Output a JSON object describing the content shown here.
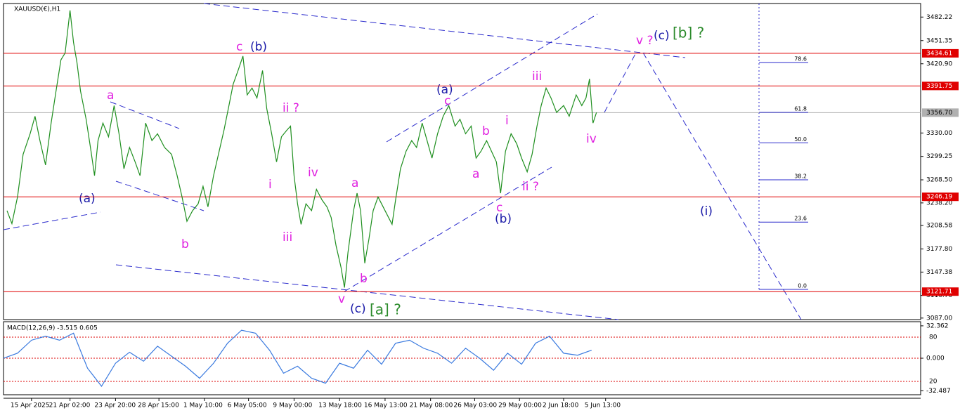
{
  "chart_data": [
    {
      "type": "line",
      "title": "XAUUSD(€),H1",
      "color": "#1f8f1f",
      "x": [
        1.25,
        3,
        5,
        7,
        9.5,
        11.25,
        13,
        15,
        17,
        18.75,
        20.5,
        22,
        23.75,
        25,
        26.25,
        27.5,
        29.5,
        31.25,
        32.5,
        33.75,
        35.5,
        37.5,
        39.5,
        41.25,
        43,
        45,
        47,
        48.75,
        50.75,
        53,
        55,
        57.5,
        60,
        62,
        63.75,
        65.5,
        67.5,
        69.5,
        71.25,
        73,
        75,
        77,
        78.75,
        80.5,
        82,
        83.75,
        85.5,
        87,
        88.75,
        90.5,
        92.5,
        94,
        95.75,
        97.5,
        99.25,
        101.25,
        102.5,
        103.75,
        105,
        106.25,
        108,
        110,
        111.75,
        113.75,
        115.5,
        117,
        118.75,
        120.5,
        121.75,
        123,
        125,
        126.25,
        127.5,
        129,
        130.5,
        132,
        133.75,
        136.25,
        138.75,
        140,
        141.75,
        143.75,
        145.75,
        147.5,
        149.5,
        151.25,
        153,
        155,
        157,
        159,
        161.25,
        163,
        165,
        167,
        168.75,
        170.5,
        172.5,
        174.25,
        176,
        177.5,
        179.25,
        181.25,
        183.25,
        185,
        187,
        188.75,
        190.5,
        192,
        193.75,
        195.5,
        197.5,
        200,
        202,
        204.5,
        206.5,
        208,
        209.25,
        210.5,
        211.75
      ],
      "values": [
        3228,
        3211,
        3246,
        3302,
        3329,
        3352,
        3320,
        3288,
        3343,
        3385,
        3426,
        3435,
        3491,
        3449,
        3422,
        3385,
        3348,
        3306,
        3274,
        3320,
        3343,
        3325,
        3366,
        3329,
        3283,
        3311,
        3292,
        3274,
        3343,
        3320,
        3329,
        3311,
        3302,
        3274,
        3246,
        3214,
        3228,
        3237,
        3260,
        3233,
        3274,
        3306,
        3334,
        3366,
        3394,
        3412,
        3431,
        3380,
        3389,
        3376,
        3412,
        3362,
        3329,
        3292,
        3325,
        3334,
        3339,
        3274,
        3237,
        3210,
        3237,
        3228,
        3256,
        3242,
        3233,
        3219,
        3182,
        3154,
        3127,
        3173,
        3228,
        3251,
        3228,
        3159,
        3191,
        3228,
        3246,
        3228,
        3210,
        3242,
        3283,
        3306,
        3320,
        3311,
        3343,
        3320,
        3297,
        3329,
        3352,
        3366,
        3339,
        3348,
        3329,
        3339,
        3297,
        3306,
        3320,
        3306,
        3292,
        3251,
        3306,
        3329,
        3316,
        3297,
        3279,
        3302,
        3339,
        3366,
        3389,
        3376,
        3357,
        3366,
        3352,
        3380,
        3366,
        3376,
        3401,
        3343,
        3357
      ],
      "xlim": [
        0,
        327.5
      ],
      "xticks": [
        {
          "value": 10,
          "label": "15 Apr 2025"
        },
        {
          "value": 23.75,
          "label": "21 Apr 02:00"
        },
        {
          "value": 40,
          "label": "23 Apr 20:00"
        },
        {
          "value": 55.5,
          "label": "28 Apr 15:00"
        },
        {
          "value": 71.75,
          "label": "1 May 10:00"
        },
        {
          "value": 87.5,
          "label": "6 May 05:00"
        },
        {
          "value": 103.75,
          "label": "9 May 00:00"
        },
        {
          "value": 120,
          "label": "13 May 18:00"
        },
        {
          "value": 136.25,
          "label": "16 May 13:00"
        },
        {
          "value": 152.5,
          "label": "21 May 08:00"
        },
        {
          "value": 168.25,
          "label": "26 May 03:00"
        },
        {
          "value": 184.25,
          "label": "29 May 00:00"
        },
        {
          "value": 200,
          "label": "2 Jun 18:00"
        },
        {
          "value": 215,
          "label": "5 Jun 13:00"
        }
      ],
      "ylim": [
        3085,
        3500
      ],
      "yticks": [
        3482.22,
        3451.35,
        {
          "value": 3420.9,
          "label": "3420.90"
        },
        {
          "value": 3268.5,
          "label": "3268.50"
        },
        {
          "value": 3330,
          "label": "3330.00"
        },
        {
          "value": 3299.25,
          "label": "3299.25"
        },
        {
          "value": 3238.2,
          "label": "3238.20"
        },
        3208.58,
        {
          "value": 3177.8,
          "label": "3177.80"
        },
        3147.38,
        {
          "value": 3116.7,
          "label": "3116.70"
        },
        {
          "value": 3087,
          "label": "3087.00"
        }
      ],
      "levels": [
        3434.61,
        3391.75,
        3246.19,
        3121.71
      ],
      "level_color": "#e00000",
      "current_price": {
        "value": 3356.7,
        "label": "3356.70"
      },
      "fib_levels": [
        {
          "label": "78.6",
          "price": 3422.5
        },
        {
          "label": "61.8",
          "price": 3357
        },
        {
          "label": "50.0",
          "price": 3317
        },
        {
          "label": "38.2",
          "price": 3268.5
        },
        {
          "label": "23.6",
          "price": 3213
        },
        {
          "label": "0.0",
          "price": 3124.6
        }
      ],
      "annotations": [
        "(a)",
        "a",
        "b",
        "c",
        "(b)",
        "ii ?",
        "i",
        "iii",
        "iv",
        "a",
        "b",
        "v",
        "(c)",
        "[a] ?",
        "(a)",
        "c",
        "b",
        "a",
        "i",
        "c",
        "(b)",
        "ii ?",
        "iii",
        "iv",
        "v ?",
        "(c)",
        "[b] ?",
        "(i)"
      ]
    },
    {
      "type": "line",
      "title": "MACD(12,26,9) -3.515 0.605",
      "color": "#3a7adf",
      "x": [
        0,
        5,
        10,
        15,
        20,
        25,
        30,
        35,
        40,
        45,
        50,
        55,
        60,
        65,
        70,
        75,
        80,
        85,
        90,
        95,
        100,
        105,
        110,
        115,
        120,
        125,
        130,
        135,
        140,
        145,
        150,
        155,
        160,
        165,
        170,
        175,
        180,
        185,
        190,
        195,
        200,
        205,
        210
      ],
      "values": [
        0,
        5,
        18,
        22,
        18,
        25,
        -10,
        -28,
        -5,
        6,
        -3,
        12,
        2,
        -8,
        -20,
        -5,
        15,
        28,
        25,
        8,
        -15,
        -8,
        -20,
        -25,
        -5,
        -10,
        8,
        -6,
        15,
        18,
        10,
        5,
        -5,
        10,
        0,
        -12,
        5,
        -6,
        15,
        22,
        5,
        3,
        8
      ],
      "xlim": [
        0,
        327.5
      ],
      "ylim": [
        -36.5,
        36.5
      ],
      "yticks": [
        32.362,
        {
          "value": 0,
          "label": "0.000"
        },
        -32.487
      ],
      "level_labels": [
        "80",
        "20"
      ]
    }
  ]
}
